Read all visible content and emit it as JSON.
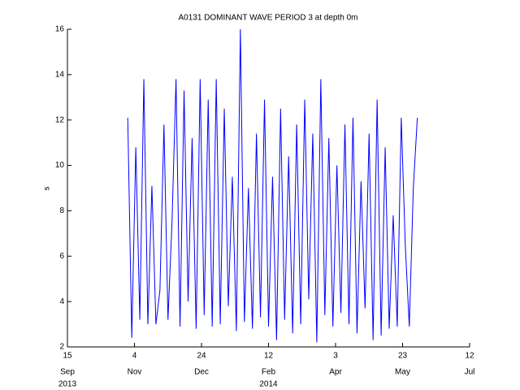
{
  "chart_data": {
    "type": "line",
    "title": "A0131 DOMINANT WAVE PERIOD 3 at depth 0m",
    "ylabel": "s",
    "x": [
      "2013-10-30",
      "2013-11-02",
      "2013-11-05",
      "2013-11-08",
      "2013-11-11",
      "2013-11-14",
      "2013-11-17",
      "2013-11-20",
      "2013-11-23",
      "2013-11-26",
      "2013-11-29",
      "2013-12-02",
      "2013-12-05",
      "2013-12-08",
      "2013-12-11",
      "2013-12-14",
      "2013-12-17",
      "2013-12-20",
      "2013-12-23",
      "2013-12-26",
      "2013-12-29",
      "2014-01-01",
      "2014-01-04",
      "2014-01-07",
      "2014-01-10",
      "2014-01-13",
      "2014-01-16",
      "2014-01-19",
      "2014-01-22",
      "2014-01-25",
      "2014-01-28",
      "2014-01-31",
      "2014-02-03",
      "2014-02-06",
      "2014-02-09",
      "2014-02-12",
      "2014-02-15",
      "2014-02-18",
      "2014-02-21",
      "2014-02-24",
      "2014-02-27",
      "2014-03-02",
      "2014-03-05",
      "2014-03-08",
      "2014-03-11",
      "2014-03-14",
      "2014-03-17",
      "2014-03-20",
      "2014-03-23",
      "2014-03-26",
      "2014-03-29",
      "2014-04-01",
      "2014-04-04",
      "2014-04-07",
      "2014-04-10",
      "2014-04-13",
      "2014-04-16",
      "2014-04-19",
      "2014-04-22",
      "2014-04-25",
      "2014-04-28",
      "2014-05-01",
      "2014-05-04",
      "2014-05-07",
      "2014-05-10",
      "2014-05-13",
      "2014-05-16",
      "2014-05-19",
      "2014-05-22",
      "2014-05-25",
      "2014-05-28",
      "2014-05-31",
      "2014-06-03"
    ],
    "series": [
      {
        "color": "#0000ff",
        "values": [
          12.1,
          2.4,
          10.8,
          3.2,
          13.8,
          3.0,
          9.1,
          3.0,
          4.5,
          11.8,
          3.2,
          7.5,
          13.8,
          2.9,
          13.3,
          4.0,
          11.2,
          2.8,
          13.8,
          3.4,
          12.9,
          2.9,
          13.8,
          3.0,
          12.5,
          3.8,
          9.5,
          2.7,
          16.0,
          3.1,
          9.0,
          2.8,
          11.4,
          3.3,
          12.9,
          2.9,
          9.5,
          2.3,
          12.5,
          3.2,
          10.4,
          2.6,
          11.8,
          3.0,
          12.9,
          4.1,
          11.4,
          2.2,
          13.8,
          3.4,
          11.2,
          2.9,
          10.0,
          3.5,
          11.8,
          3.0,
          12.1,
          2.6,
          9.3,
          3.7,
          11.4,
          2.3,
          12.9,
          2.5,
          10.8,
          2.8,
          7.8,
          2.9,
          12.1,
          6.5,
          2.9,
          9.0,
          12.1
        ]
      }
    ],
    "xlim": [
      "2013-09-15",
      "2014-07-12"
    ],
    "xticks": [
      {
        "value": "2013-09-15",
        "label": "15",
        "month": "Sep",
        "year": "2013"
      },
      {
        "value": "2013-11-04",
        "label": "4",
        "month": "Nov"
      },
      {
        "value": "2013-12-24",
        "label": "24",
        "month": "Dec"
      },
      {
        "value": "2014-02-12",
        "label": "12",
        "month": "Feb",
        "year": "2014"
      },
      {
        "value": "2014-04-03",
        "label": "3",
        "month": "Apr"
      },
      {
        "value": "2014-05-23",
        "label": "23",
        "month": "May"
      },
      {
        "value": "2014-07-12",
        "label": "12",
        "month": "Jul"
      }
    ],
    "ylim": [
      2,
      16
    ],
    "yticks": [
      2,
      4,
      6,
      8,
      10,
      12,
      14,
      16
    ],
    "grid": false
  }
}
